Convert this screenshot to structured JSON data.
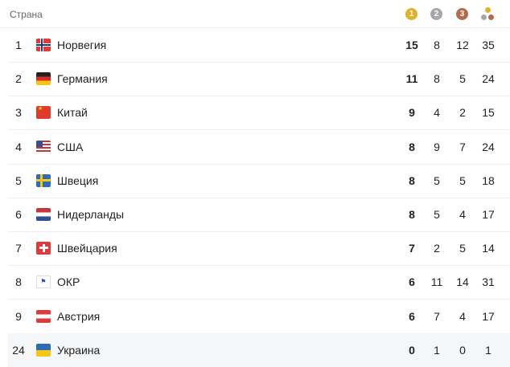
{
  "header": {
    "country_label": "Страна",
    "gold_icon": "1",
    "silver_icon": "2",
    "bronze_icon": "3",
    "total_icon": "total-medals-icon"
  },
  "colors": {
    "gold": "#e0b12a",
    "silver": "#a3a8ae",
    "bronze": "#b36b52",
    "highlight": "#f5f6f8"
  },
  "rows": [
    {
      "rank": "1",
      "country": "Норвегия",
      "flag": "norway",
      "gold": "15",
      "silver": "8",
      "bronze": "12",
      "total": "35"
    },
    {
      "rank": "2",
      "country": "Германия",
      "flag": "germany",
      "gold": "11",
      "silver": "8",
      "bronze": "5",
      "total": "24"
    },
    {
      "rank": "3",
      "country": "Китай",
      "flag": "china",
      "gold": "9",
      "silver": "4",
      "bronze": "2",
      "total": "15"
    },
    {
      "rank": "4",
      "country": "США",
      "flag": "usa",
      "gold": "8",
      "silver": "9",
      "bronze": "7",
      "total": "24"
    },
    {
      "rank": "5",
      "country": "Швеция",
      "flag": "sweden",
      "gold": "8",
      "silver": "5",
      "bronze": "5",
      "total": "18"
    },
    {
      "rank": "6",
      "country": "Нидерланды",
      "flag": "netherlands",
      "gold": "8",
      "silver": "5",
      "bronze": "4",
      "total": "17"
    },
    {
      "rank": "7",
      "country": "Швейцария",
      "flag": "switzerland",
      "gold": "7",
      "silver": "2",
      "bronze": "5",
      "total": "14"
    },
    {
      "rank": "8",
      "country": "ОКР",
      "flag": "roc",
      "gold": "6",
      "silver": "11",
      "bronze": "14",
      "total": "31"
    },
    {
      "rank": "9",
      "country": "Австрия",
      "flag": "austria",
      "gold": "6",
      "silver": "7",
      "bronze": "4",
      "total": "17"
    },
    {
      "rank": "24",
      "country": "Украина",
      "flag": "ukraine",
      "gold": "0",
      "silver": "1",
      "bronze": "0",
      "total": "1",
      "highlighted": true
    }
  ]
}
